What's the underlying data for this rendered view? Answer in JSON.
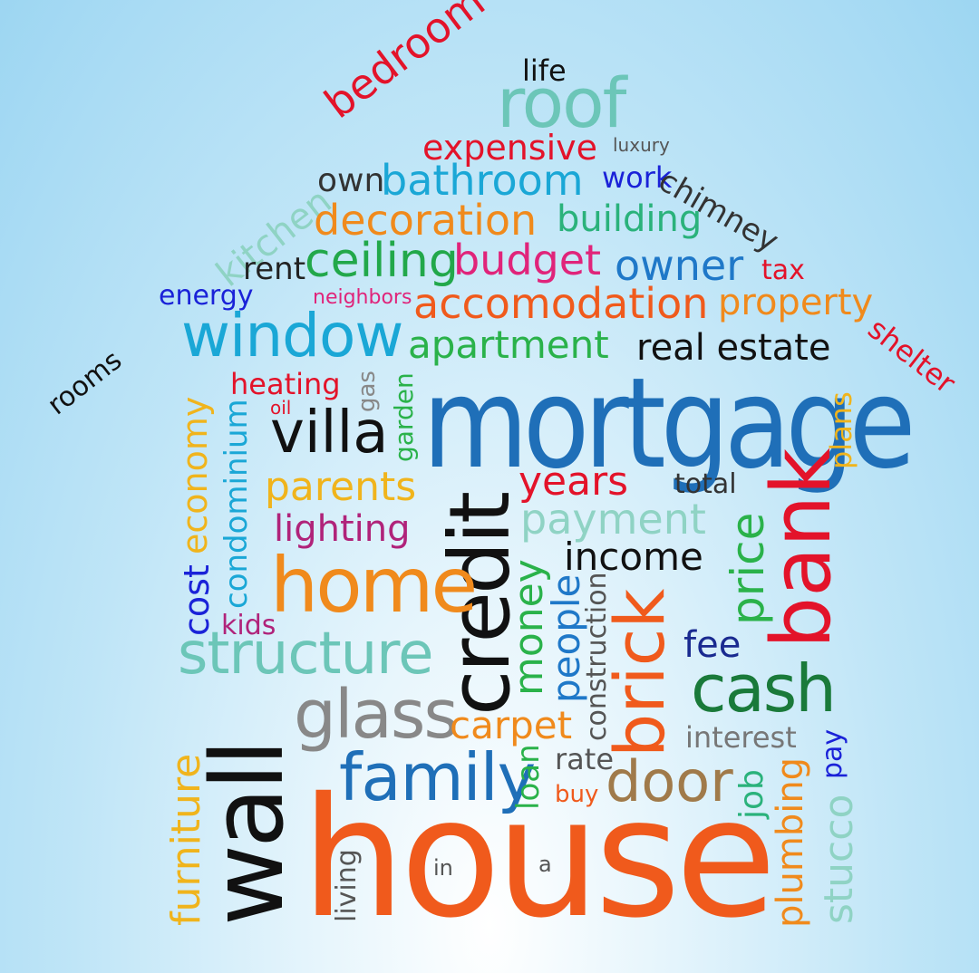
{
  "words": [
    {
      "id": "life",
      "text": "life",
      "color": "#111111"
    },
    {
      "id": "roof",
      "text": "roof",
      "color": "#6cc6b8"
    },
    {
      "id": "bedroom",
      "text": "bedroom",
      "color": "#e3132a"
    },
    {
      "id": "expensive",
      "text": "expensive",
      "color": "#e3132a"
    },
    {
      "id": "luxury",
      "text": "luxury",
      "color": "#555555"
    },
    {
      "id": "own",
      "text": "own",
      "color": "#333333"
    },
    {
      "id": "bathroom",
      "text": "bathroom",
      "color": "#1aa7d6"
    },
    {
      "id": "work",
      "text": "work",
      "color": "#1a22d8"
    },
    {
      "id": "chimney",
      "text": "chimney",
      "color": "#333333"
    },
    {
      "id": "kitchen",
      "text": "kitchen",
      "color": "#8fd3c4"
    },
    {
      "id": "decoration",
      "text": "decoration",
      "color": "#f08a1c"
    },
    {
      "id": "building",
      "text": "building",
      "color": "#2ab27b"
    },
    {
      "id": "rent",
      "text": "rent",
      "color": "#222222"
    },
    {
      "id": "ceiling",
      "text": "ceiling",
      "color": "#22a84a"
    },
    {
      "id": "budget",
      "text": "budget",
      "color": "#e0247a"
    },
    {
      "id": "owner",
      "text": "owner",
      "color": "#1f78c8"
    },
    {
      "id": "tax",
      "text": "tax",
      "color": "#e3132a"
    },
    {
      "id": "energy",
      "text": "energy",
      "color": "#1a22d8"
    },
    {
      "id": "neighbors",
      "text": "neighbors",
      "color": "#e0247a"
    },
    {
      "id": "accomodation",
      "text": "accomodation",
      "color": "#f05a1c"
    },
    {
      "id": "property",
      "text": "property",
      "color": "#f08a1c"
    },
    {
      "id": "rooms",
      "text": "rooms",
      "color": "#111111"
    },
    {
      "id": "shelter",
      "text": "shelter",
      "color": "#e3132a"
    },
    {
      "id": "window",
      "text": "window",
      "color": "#1aa7d6"
    },
    {
      "id": "apartment",
      "text": "apartment",
      "color": "#2ab24a"
    },
    {
      "id": "real_estate",
      "text": "real estate",
      "color": "#111111"
    },
    {
      "id": "heating",
      "text": "heating",
      "color": "#e3132a"
    },
    {
      "id": "gas",
      "text": "gas",
      "color": "#888888"
    },
    {
      "id": "garden",
      "text": "garden",
      "color": "#2ab24a"
    },
    {
      "id": "mortgage",
      "text": "mortgage",
      "color": "#1f6fb8"
    },
    {
      "id": "plans",
      "text": "plans",
      "color": "#f0b41c"
    },
    {
      "id": "economy",
      "text": "economy",
      "color": "#f0b41c"
    },
    {
      "id": "condominium",
      "text": "condominium",
      "color": "#1aa7d6"
    },
    {
      "id": "oil",
      "text": "oil",
      "color": "#e3132a"
    },
    {
      "id": "villa",
      "text": "villa",
      "color": "#111111"
    },
    {
      "id": "years",
      "text": "years",
      "color": "#e3132a"
    },
    {
      "id": "total",
      "text": "total",
      "color": "#333333"
    },
    {
      "id": "parents",
      "text": "parents",
      "color": "#f0b41c"
    },
    {
      "id": "credit",
      "text": "credit",
      "color": "#111111"
    },
    {
      "id": "payment",
      "text": "payment",
      "color": "#8fd3c4"
    },
    {
      "id": "lighting",
      "text": "lighting",
      "color": "#b0237a"
    },
    {
      "id": "income",
      "text": "income",
      "color": "#111111"
    },
    {
      "id": "price",
      "text": "price",
      "color": "#2ab24a"
    },
    {
      "id": "bank",
      "text": "bank",
      "color": "#e3132a"
    },
    {
      "id": "cost",
      "text": "cost",
      "color": "#1a22d8"
    },
    {
      "id": "home",
      "text": "home",
      "color": "#f08a1c"
    },
    {
      "id": "money",
      "text": "money",
      "color": "#2ab24a"
    },
    {
      "id": "people",
      "text": "people",
      "color": "#1f78c8"
    },
    {
      "id": "construction",
      "text": "construction",
      "color": "#555555"
    },
    {
      "id": "brick",
      "text": "brick",
      "color": "#f05a1c"
    },
    {
      "id": "kids",
      "text": "kids",
      "color": "#b0237a"
    },
    {
      "id": "fee",
      "text": "fee",
      "color": "#1a2a90"
    },
    {
      "id": "structure",
      "text": "structure",
      "color": "#6cc6b8"
    },
    {
      "id": "cash",
      "text": "cash",
      "color": "#1a7a3a"
    },
    {
      "id": "wall",
      "text": "wall",
      "color": "#111111"
    },
    {
      "id": "glass",
      "text": "glass",
      "color": "#888888"
    },
    {
      "id": "carpet",
      "text": "carpet",
      "color": "#f08a1c"
    },
    {
      "id": "interest",
      "text": "interest",
      "color": "#777777"
    },
    {
      "id": "pay",
      "text": "pay",
      "color": "#1a22d8"
    },
    {
      "id": "furniture",
      "text": "furniture",
      "color": "#f0b41c"
    },
    {
      "id": "family",
      "text": "family",
      "color": "#1f6fb8"
    },
    {
      "id": "loan",
      "text": "loan",
      "color": "#2ab24a"
    },
    {
      "id": "rate",
      "text": "rate",
      "color": "#555555"
    },
    {
      "id": "door",
      "text": "door",
      "color": "#a07a4a"
    },
    {
      "id": "job",
      "text": "job",
      "color": "#2ab27b"
    },
    {
      "id": "plumbing",
      "text": "plumbing",
      "color": "#f08a1c"
    },
    {
      "id": "stucco",
      "text": "stucco",
      "color": "#8fd3c4"
    },
    {
      "id": "buy",
      "text": "buy",
      "color": "#f05a1c"
    },
    {
      "id": "house",
      "text": "house",
      "color": "#f05a1c"
    },
    {
      "id": "living",
      "text": "living",
      "color": "#555555"
    },
    {
      "id": "in",
      "text": "in",
      "color": "#555555"
    },
    {
      "id": "a",
      "text": "a",
      "color": "#555555"
    }
  ]
}
